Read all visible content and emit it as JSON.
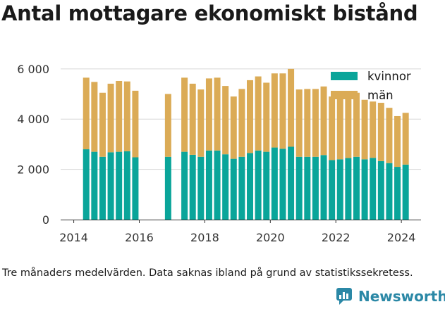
{
  "title": "Antal mottagare ekonomiskt bistånd",
  "footnote": "Tre månaders medelvärden. Data saknas ibland på grund av statistikssekretess.",
  "brand": {
    "name": "Newsworthy",
    "icon": "newsworthy-logo-icon",
    "color": "#2b88a6"
  },
  "chart_data": {
    "type": "bar",
    "stacked": true,
    "grid": "horizontal",
    "legend_position": "top-right",
    "xlim": [
      2013.6,
      2024.6
    ],
    "ylim": [
      0,
      6500
    ],
    "x_ticks": [
      2014,
      2016,
      2018,
      2020,
      2022,
      2024
    ],
    "x_tick_labels": [
      "2014",
      "2016",
      "2018",
      "2020",
      "2022",
      "2024"
    ],
    "y_ticks": [
      0,
      2000,
      4000,
      6000
    ],
    "y_tick_labels": [
      "0",
      "2 000",
      "4 000",
      "6 000"
    ],
    "x": [
      2014.38,
      2014.63,
      2014.88,
      2015.13,
      2015.38,
      2015.63,
      2015.88,
      2016.88,
      2017.38,
      2017.63,
      2017.88,
      2018.13,
      2018.38,
      2018.63,
      2018.88,
      2019.13,
      2019.38,
      2019.63,
      2019.88,
      2020.13,
      2020.38,
      2020.63,
      2020.88,
      2021.13,
      2021.38,
      2021.63,
      2021.88,
      2022.13,
      2022.38,
      2022.63,
      2022.88,
      2023.13,
      2023.38,
      2023.63,
      2023.88,
      2024.13
    ],
    "series": [
      {
        "name": "kvinnor",
        "color": "#0aa59a",
        "values": [
          2800,
          2700,
          2500,
          2680,
          2700,
          2720,
          2480,
          2500,
          2700,
          2580,
          2500,
          2750,
          2750,
          2600,
          2420,
          2500,
          2650,
          2750,
          2700,
          2870,
          2820,
          2900,
          2500,
          2500,
          2500,
          2570,
          2370,
          2400,
          2450,
          2500,
          2400,
          2460,
          2330,
          2250,
          2100,
          2190
        ]
      },
      {
        "name": "män",
        "color": "#dbab56",
        "values": [
          2850,
          2780,
          2550,
          2730,
          2820,
          2780,
          2650,
          2500,
          2950,
          2830,
          2680,
          2870,
          2900,
          2720,
          2480,
          2700,
          2900,
          2950,
          2750,
          2950,
          3000,
          3100,
          2680,
          2700,
          2700,
          2730,
          2530,
          2500,
          2550,
          2550,
          2370,
          2240,
          2320,
          2200,
          2020,
          2060
        ]
      }
    ]
  }
}
